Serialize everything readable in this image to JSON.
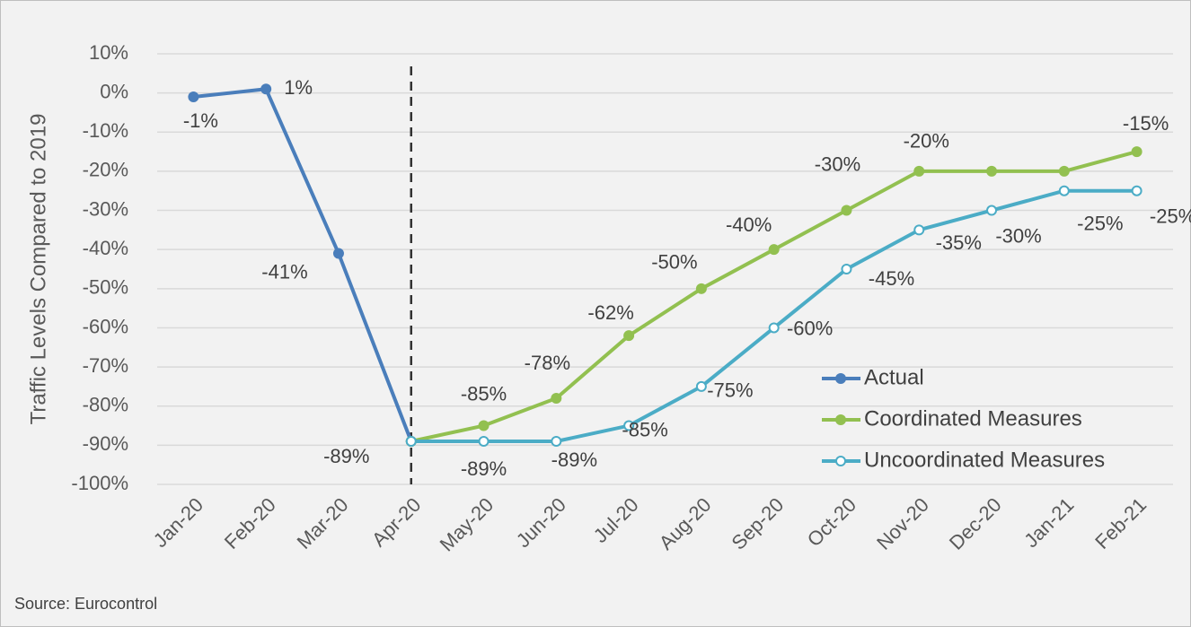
{
  "chart_data": {
    "type": "line",
    "y_axis_label": "Traffic Levels Compared to 2019",
    "source": "Source: Eurocontrol",
    "categories": [
      "Jan-20",
      "Feb-20",
      "Mar-20",
      "Apr-20",
      "May-20",
      "Jun-20",
      "Jul-20",
      "Aug-20",
      "Sep-20",
      "Oct-20",
      "Nov-20",
      "Dec-20",
      "Jan-21",
      "Feb-21"
    ],
    "series": [
      {
        "name": "Actual",
        "color": "#4a7ebb",
        "marker_fill": "#4a7ebb",
        "values": [
          -1,
          1,
          -41,
          -89,
          null,
          null,
          null,
          null,
          null,
          null,
          null,
          null,
          null,
          null
        ],
        "value_labels": [
          "-1%",
          "1%",
          "-41%",
          "-89%",
          null,
          null,
          null,
          null,
          null,
          null,
          null,
          null,
          null,
          null
        ]
      },
      {
        "name": "Coordinated Measures",
        "color": "#92c050",
        "marker_fill": "#92c050",
        "values": [
          null,
          null,
          null,
          -89,
          -85,
          -78,
          -62,
          -50,
          -40,
          -30,
          -20,
          -20,
          -20,
          -15
        ],
        "value_labels": [
          null,
          null,
          null,
          null,
          "-85%",
          "-78%",
          "-62%",
          "-50%",
          "-40%",
          "-30%",
          "-20%",
          null,
          null,
          "-15%"
        ]
      },
      {
        "name": "Uncoordinated Measures",
        "color": "#4bacc6",
        "marker_fill": "#ffffff",
        "values": [
          null,
          null,
          null,
          -89,
          -89,
          -89,
          -85,
          -75,
          -60,
          -45,
          -35,
          -30,
          -25,
          -25
        ],
        "value_labels": [
          null,
          null,
          null,
          null,
          "-89%",
          "-89%",
          "-85%",
          "-75%",
          "-60%",
          "-45%",
          "-35%",
          "-30%",
          "-25%",
          "-25%"
        ]
      }
    ],
    "ylim": [
      -100,
      10
    ],
    "yticks": [
      {
        "value": 10,
        "label": "10%"
      },
      {
        "value": 0,
        "label": "0%"
      },
      {
        "value": -10,
        "label": "-10%"
      },
      {
        "value": -20,
        "label": "-20%"
      },
      {
        "value": -30,
        "label": "-30%"
      },
      {
        "value": -40,
        "label": "-40%"
      },
      {
        "value": -50,
        "label": "-50%"
      },
      {
        "value": -60,
        "label": "-60%"
      },
      {
        "value": -70,
        "label": "-70%"
      },
      {
        "value": -80,
        "label": "-80%"
      },
      {
        "value": -90,
        "label": "-90%"
      },
      {
        "value": -100,
        "label": "-100%"
      }
    ],
    "grid": true,
    "legend": "lower right"
  }
}
